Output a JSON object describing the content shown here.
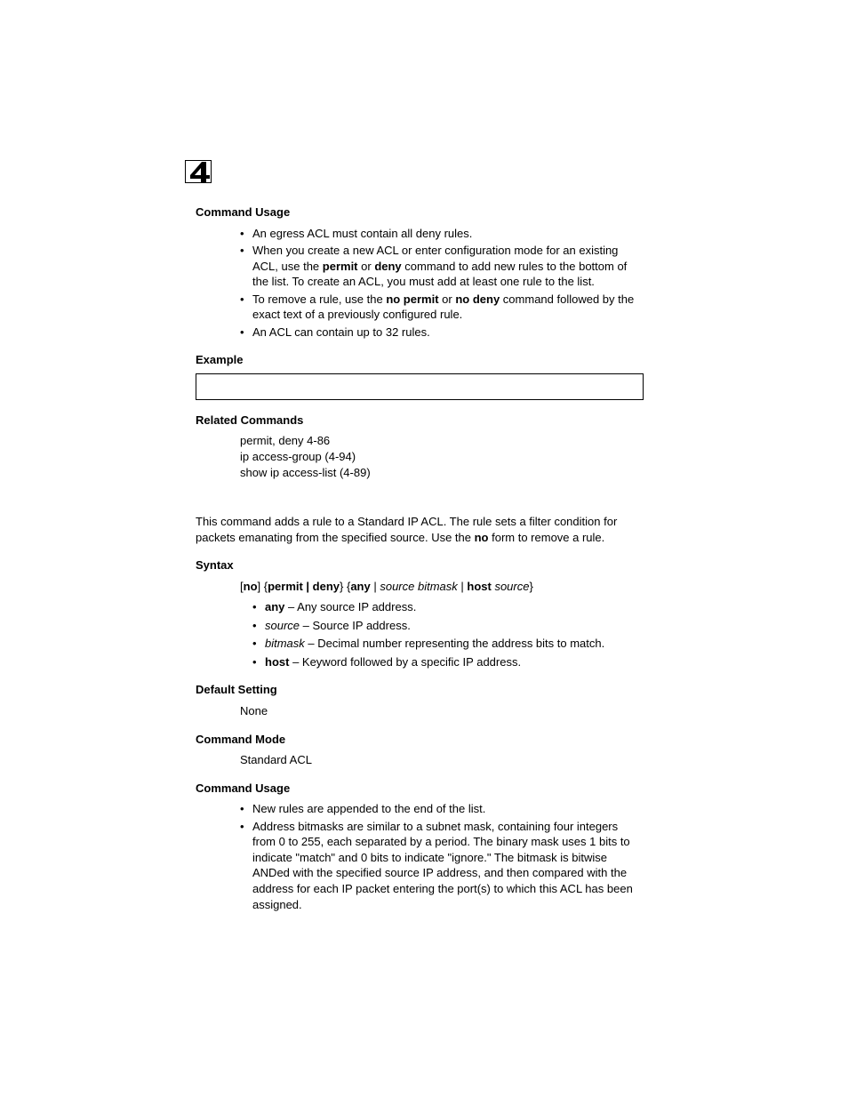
{
  "chapter_number": "4",
  "section1": {
    "heading": "Command Usage",
    "bullets": [
      [
        {
          "t": "An egress ACL must contain all deny rules."
        }
      ],
      [
        {
          "t": "When you create a new ACL or enter configuration mode for an existing ACL, use the "
        },
        {
          "b": "permit"
        },
        {
          "t": " or "
        },
        {
          "b": "deny"
        },
        {
          "t": " command to add new rules to the bottom of the list. To create an ACL, you must add at least one rule to the list."
        }
      ],
      [
        {
          "t": "To remove a rule, use the "
        },
        {
          "b": "no permit"
        },
        {
          "t": " or "
        },
        {
          "b": "no deny"
        },
        {
          "t": " command followed by the exact text of a previously configured rule."
        }
      ],
      [
        {
          "t": "An ACL can contain up to 32 rules."
        }
      ]
    ]
  },
  "example_heading": "Example",
  "related": {
    "heading": "Related Commands",
    "lines": [
      "permit, deny 4-86",
      "ip access-group (4-94)",
      "show ip access-list (4-89)"
    ]
  },
  "intro_para": [
    {
      "t": "This command adds a rule to a Standard IP ACL. The rule sets a filter condition for packets emanating from the specified source. Use the "
    },
    {
      "b": "no"
    },
    {
      "t": " form to remove a rule."
    }
  ],
  "syntax": {
    "heading": "Syntax",
    "line": [
      {
        "t": "["
      },
      {
        "b": "no"
      },
      {
        "t": "] {"
      },
      {
        "b": "permit | deny"
      },
      {
        "t": "} {"
      },
      {
        "b": "any"
      },
      {
        "t": " | "
      },
      {
        "i": "source bitmask"
      },
      {
        "t": " | "
      },
      {
        "b": "host"
      },
      {
        "t": " "
      },
      {
        "i": "source"
      },
      {
        "t": "}"
      }
    ],
    "defs": [
      [
        {
          "b": "any"
        },
        {
          "t": " – Any source IP address."
        }
      ],
      [
        {
          "i": "source"
        },
        {
          "t": " – Source IP address."
        }
      ],
      [
        {
          "i": "bitmask"
        },
        {
          "t": " – Decimal number representing the address bits to match."
        }
      ],
      [
        {
          "b": "host"
        },
        {
          "t": " – Keyword followed by a specific IP address."
        }
      ]
    ]
  },
  "default_setting": {
    "heading": "Default Setting",
    "value": "None"
  },
  "command_mode": {
    "heading": "Command Mode",
    "value": "Standard ACL"
  },
  "command_usage2": {
    "heading": "Command Usage",
    "bullets": [
      [
        {
          "t": "New rules are appended to the end of the list."
        }
      ],
      [
        {
          "t": "Address bitmasks are similar to a subnet mask, containing four integers from 0 to 255, each separated by a period. The binary mask uses 1 bits to indicate \"match\" and 0 bits to indicate \"ignore.\" The bitmask is bitwise ANDed with the specified source IP address, and then compared with the address for each IP packet entering the port(s) to which this ACL has been assigned."
        }
      ]
    ]
  }
}
